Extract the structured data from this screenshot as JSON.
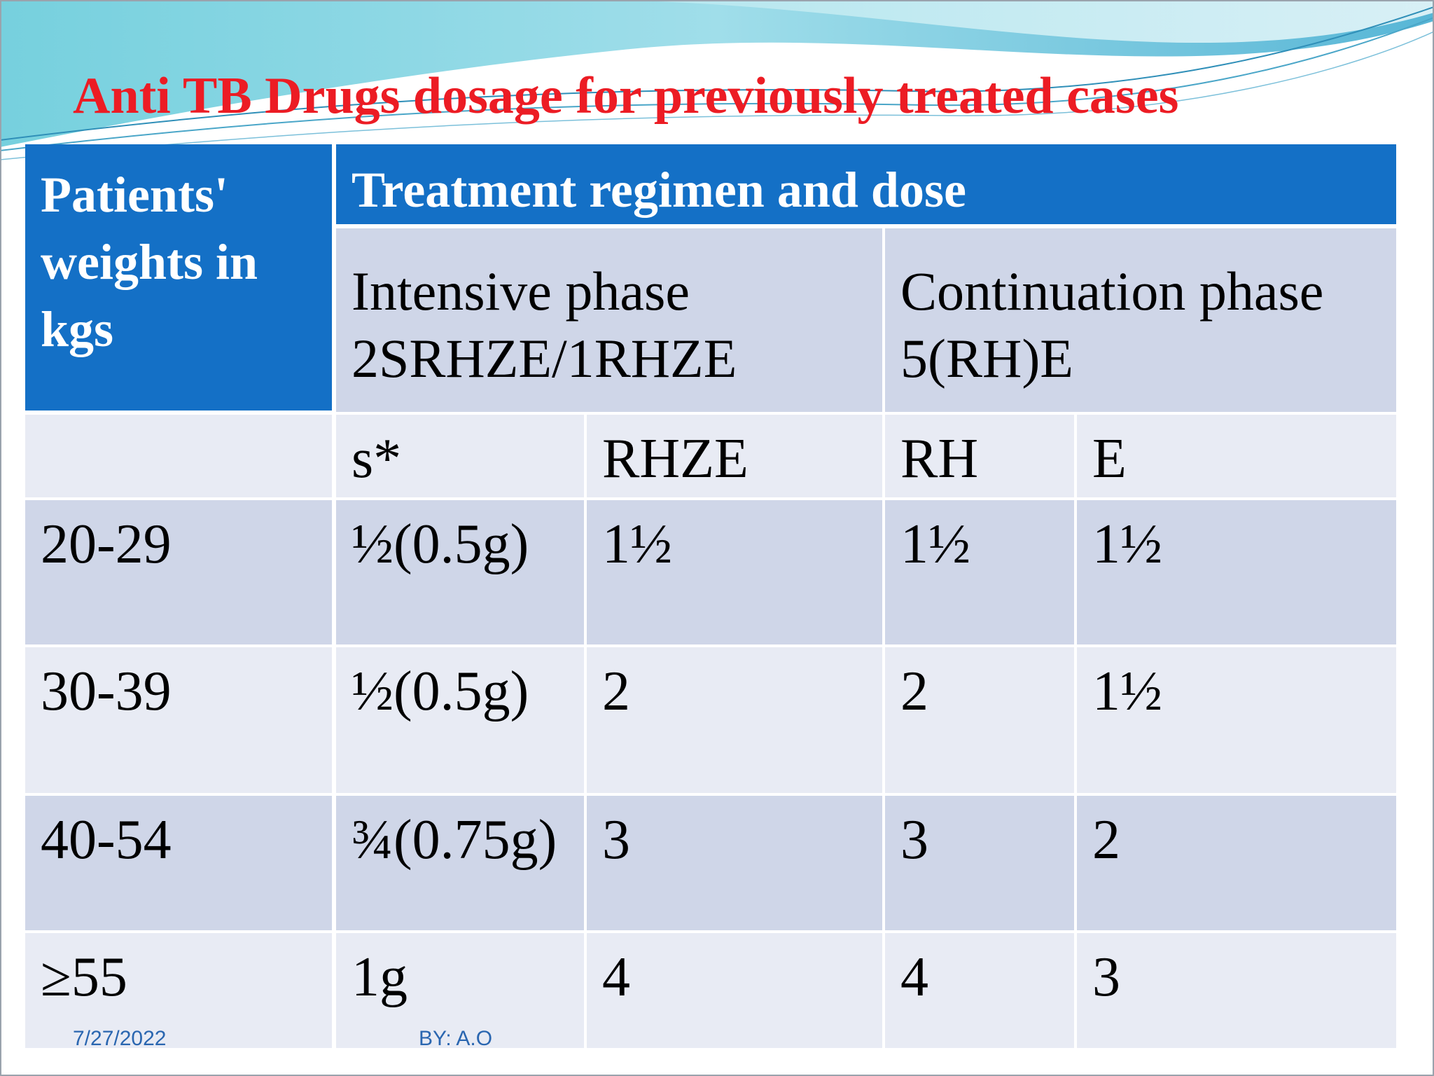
{
  "slide": {
    "title": "Anti TB Drugs dosage for previously treated cases",
    "colors": {
      "title": "#ec1c24",
      "header_bg": "#1470c6",
      "row_dark": "#cfd6e8",
      "row_light": "#e8ebf4",
      "footer_text": "#2a66b0"
    }
  },
  "table": {
    "weight_header": "Patients' weights in kgs",
    "regimen_header": "Treatment regimen and dose",
    "intensive_phase": {
      "name": "Intensive phase",
      "regimen": "2SRHZE/1RHZE"
    },
    "continuation_phase": {
      "name": "Continuation phase",
      "regimen": "5(RH)E"
    },
    "columns": [
      "",
      "s*",
      "RHZE",
      "RH",
      "E"
    ],
    "rows": [
      {
        "weight": "20-29",
        "s": "½(0.5g)",
        "rhze": "1½",
        "rh": "1½",
        "e": "1½"
      },
      {
        "weight": "30-39",
        "s": "½(0.5g)",
        "rhze": "2",
        "rh": "2",
        "e": "1½"
      },
      {
        "weight": "40-54",
        "s": "¾(0.75g)",
        "rhze": "3",
        "rh": "3",
        "e": "2"
      },
      {
        "weight": "≥55",
        "s": "1g",
        "rhze": "4",
        "rh": "4",
        "e": "3"
      }
    ]
  },
  "footer": {
    "date": "7/27/2022",
    "author": "BY: A.O"
  }
}
